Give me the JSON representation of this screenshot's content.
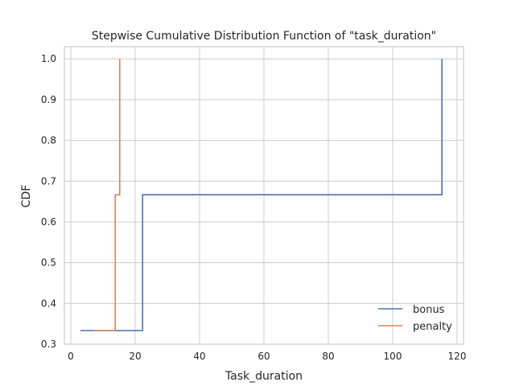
{
  "chart_data": {
    "type": "line",
    "step": "post",
    "title": "Stepwise Cumulative Distribution Function of \"task_duration\"",
    "xlabel": "Task_duration",
    "ylabel": "CDF",
    "xlim": [
      -2,
      122
    ],
    "ylim": [
      0.3,
      1.03
    ],
    "xticks": [
      0,
      20,
      40,
      60,
      80,
      100,
      120
    ],
    "yticks": [
      0.3,
      0.4,
      0.5,
      0.6,
      0.7,
      0.8,
      0.9,
      1.0
    ],
    "grid": true,
    "legend": {
      "placement": "lower-right"
    },
    "series": [
      {
        "name": "bonus",
        "color": "#4c72b0",
        "x": [
          3,
          22.3,
          115.3
        ],
        "y": [
          0.3333,
          0.6667,
          1.0
        ]
      },
      {
        "name": "penalty",
        "color": "#dd8452",
        "x": [
          7.2,
          13.8,
          15.2
        ],
        "y": [
          0.3333,
          0.6667,
          1.0
        ]
      }
    ]
  }
}
